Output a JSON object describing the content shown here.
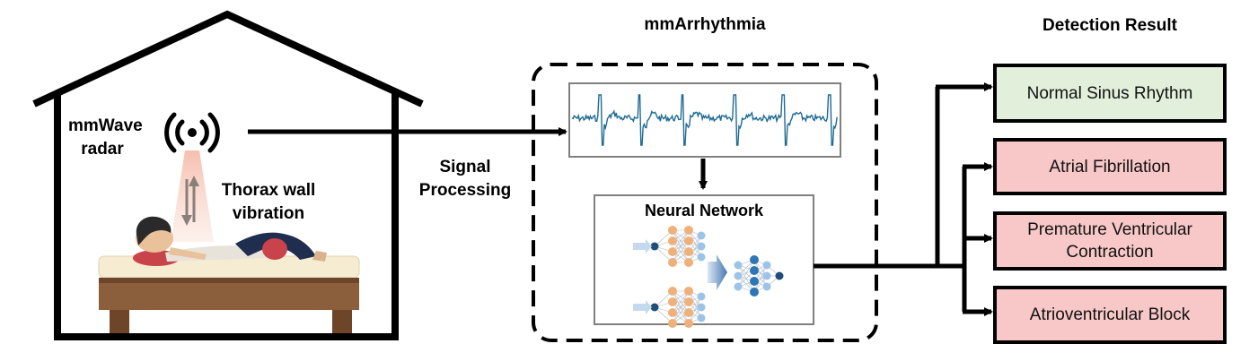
{
  "house": {
    "radar_label": "mmWave radar",
    "vibration_label": "Thorax wall vibration"
  },
  "signal_processing_label": "Signal Processing",
  "system": {
    "title": "mmArrhythmia",
    "network_label": "Neural Network"
  },
  "results": {
    "title": "Detection Result",
    "items": [
      {
        "label": "Normal Sinus Rhythm",
        "color": "#e2efda"
      },
      {
        "label": "Atrial Fibrillation",
        "color": "#f8c8c8"
      },
      {
        "label": "Premature Ventricular Contraction",
        "color": "#f8c8c8"
      },
      {
        "label": "Atrioventricular Block",
        "color": "#f8c8c8"
      }
    ]
  },
  "colors": {
    "waveform": "#1f6b94",
    "network_orange": "#f0b07a",
    "network_blue": "#2e75b6",
    "network_light_blue": "#9dc3e6"
  }
}
